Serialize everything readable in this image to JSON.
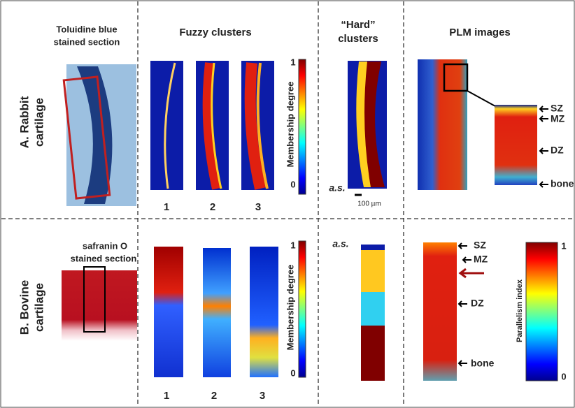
{
  "header": {
    "stain_lines": [
      "Toluidine blue",
      "stained section"
    ],
    "fuzzy": "Fuzzy clusters",
    "hard_lines": [
      "“Hard”",
      "clusters"
    ],
    "plm": "PLM images"
  },
  "rows": [
    {
      "label_lines": [
        "A. Rabbit",
        "cartilage"
      ],
      "cbar_top": "1",
      "cbar_bottom": "0",
      "cbar_label": "Membership degree",
      "clusters": [
        "1",
        "2",
        "3"
      ],
      "note": "a.s.",
      "scale": "100 µm",
      "zones": [
        "SZ",
        "MZ",
        "DZ",
        "bone"
      ]
    },
    {
      "label_lines": [
        "B. Bovine",
        "cartilage"
      ],
      "stain_lines": [
        "safranin O",
        "stained section"
      ],
      "cbar_top": "1",
      "cbar_bottom": "0",
      "cbar_label": "Membership degree",
      "clusters": [
        "1",
        "2",
        "3"
      ],
      "note": "a.s.",
      "zones": [
        "SZ",
        "MZ",
        "DZ",
        "bone"
      ],
      "pi_label": "Parallelism index",
      "pi_top": "1",
      "pi_bottom": "0"
    }
  ]
}
